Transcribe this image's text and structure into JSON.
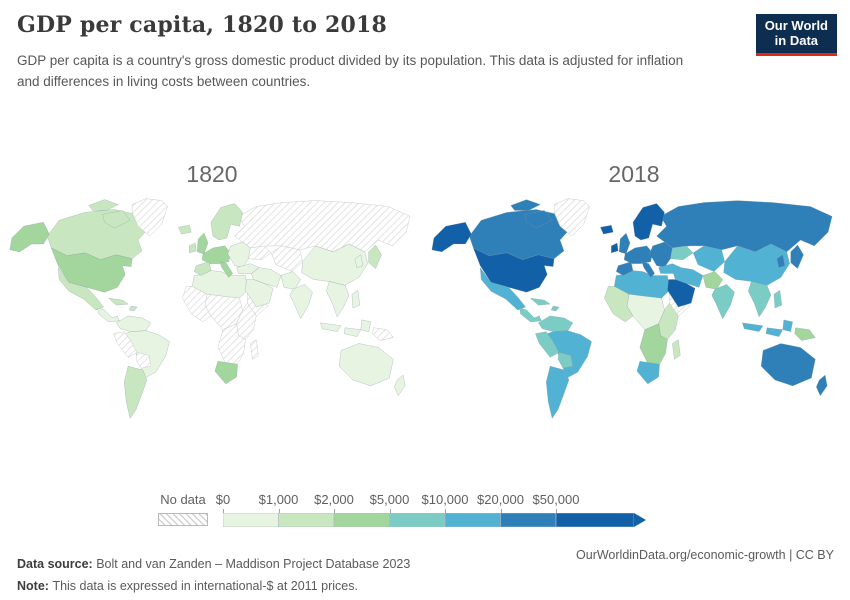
{
  "header": {
    "title": "GDP per capita, 1820 to 2018",
    "subtitle_line1": "GDP per capita is a country's gross domestic product divided by its population. This data is adjusted for inflation",
    "subtitle_line2": "and differences in living costs between countries.",
    "logo": {
      "line1": "Our World",
      "line2": "in Data",
      "bg_color": "#0d2d51",
      "accent_color": "#dc2a18"
    }
  },
  "chart_data": {
    "type": "choropleth",
    "title": "GDP per capita, 1820 to 2018",
    "legend": {
      "no_data_label": "No data",
      "bin_labels": [
        "$0",
        "$1,000",
        "$2,000",
        "$5,000",
        "$10,000",
        "$20,000",
        "$50,000"
      ],
      "bin_colors": [
        "#e6f4e1",
        "#c8e7c0",
        "#a2d69c",
        "#7accc4",
        "#52b2d3",
        "#2f80b9",
        "#1260a8"
      ],
      "open_ended_arrow": true
    },
    "maps": [
      {
        "year_label": "1820",
        "regions": {
          "russia": "no-data",
          "canada": 1,
          "canadaIslands": 1,
          "greenland": "no-data",
          "alaska": 2,
          "usa": 2,
          "mexico": 1,
          "centralAmerica": 0,
          "caribbean": 1,
          "colombiaVenezuela": 0,
          "brazil": 0,
          "peru": "no-data",
          "bolivia": "no-data",
          "argentinaChile": 1,
          "northAfrica": 0,
          "westAfrica": "no-data",
          "centralAfrica": "no-data",
          "eastAfrica": "no-data",
          "hornOfAfrica": "no-data",
          "southernAfrica": "no-data",
          "southAfrica": 2,
          "madagascar": "no-data",
          "iceland": 1,
          "ireland": 1,
          "uk": 2,
          "scandinavia": 1,
          "westEurope": 2,
          "iberia": 1,
          "italy": 2,
          "eastEurope": 0,
          "ukraine": "no-data",
          "centralAsia": "no-data",
          "turkey": 0,
          "middleEast": 0,
          "arabia": 0,
          "pakistanAfghan": 0,
          "india": 0,
          "china": 0,
          "seAsia": 0,
          "korea": 0,
          "japan": 1,
          "philippines": 0,
          "indonesia": 0,
          "newGuinea": "no-data",
          "australia": 0,
          "newZealand": 0
        }
      },
      {
        "year_label": "2018",
        "regions": {
          "russia": 5,
          "canada": 5,
          "canadaIslands": 5,
          "greenland": "no-data",
          "alaska": 6,
          "usa": 6,
          "mexico": 4,
          "centralAmerica": 3,
          "caribbean": 3,
          "colombiaVenezuela": 3,
          "brazil": 4,
          "peru": 3,
          "bolivia": 3,
          "argentinaChile": 4,
          "northAfrica": 4,
          "westAfrica": 1,
          "centralAfrica": 0,
          "eastAfrica": 1,
          "hornOfAfrica": "no-data",
          "southernAfrica": 2,
          "southAfrica": 4,
          "madagascar": 1,
          "iceland": 6,
          "ireland": 6,
          "uk": 5,
          "scandinavia": 6,
          "westEurope": 5,
          "iberia": 5,
          "italy": 5,
          "eastEurope": 5,
          "ukraine": 3,
          "centralAsia": 4,
          "turkey": 4,
          "middleEast": 4,
          "arabia": 6,
          "pakistanAfghan": 2,
          "india": 3,
          "china": 4,
          "seAsia": 3,
          "korea": 5,
          "japan": 5,
          "philippines": 3,
          "indonesia": 4,
          "newGuinea": 2,
          "australia": 5,
          "newZealand": 5
        }
      }
    ]
  },
  "footer": {
    "source_label": "Data source:",
    "source_text": "Bolt and van Zanden – Maddison Project Database 2023",
    "note_label": "Note:",
    "note_text": "This data is expressed in international-$ at 2011 prices.",
    "link_text": "OurWorldinData.org/economic-growth | CC BY"
  }
}
